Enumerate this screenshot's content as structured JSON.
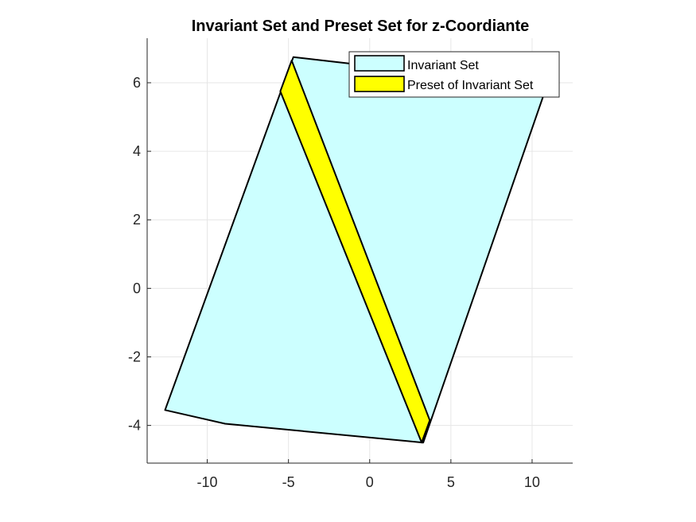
{
  "chart_data": {
    "type": "area",
    "title": "Invariant Set and Preset Set for z-Coordiante",
    "xlabel": "",
    "ylabel": "",
    "xlim": [
      -13.7,
      12.5
    ],
    "ylim": [
      -5.1,
      7.3
    ],
    "xticks": [
      -10,
      -5,
      0,
      5,
      10
    ],
    "xtick_labels": [
      "-10",
      "-5",
      "0",
      "5",
      "10"
    ],
    "yticks": [
      -4,
      -2,
      0,
      2,
      4,
      6
    ],
    "ytick_labels": [
      "-4",
      "-2",
      "0",
      "2",
      "4",
      "6"
    ],
    "grid": true,
    "legend_position": "top-right",
    "series": [
      {
        "name": "Invariant Set",
        "color": "#ccffff",
        "edge_color": "#000000",
        "x": [
          -12.6,
          -8.9,
          3.3,
          10.9,
          -4.7
        ],
        "y": [
          -3.55,
          -3.95,
          -4.5,
          5.9,
          6.75
        ]
      },
      {
        "name": "Preset of Invariant Set",
        "color": "#ffff00",
        "edge_color": "#000000",
        "x": [
          -4.8,
          3.7,
          3.2,
          -5.5
        ],
        "y": [
          6.65,
          -3.85,
          -4.5,
          5.75
        ]
      }
    ]
  }
}
